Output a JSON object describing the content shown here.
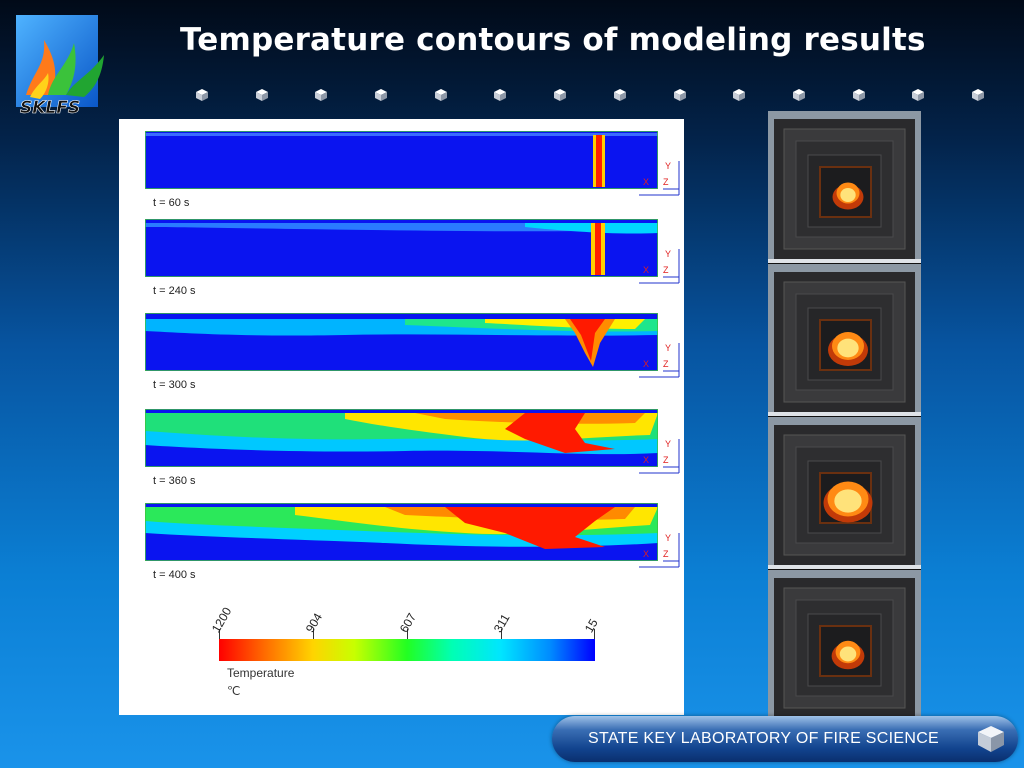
{
  "header": {
    "title": "Temperature contours of modeling results",
    "logo_text": "SKLFS"
  },
  "snapshots": [
    {
      "label": "t = 60 s"
    },
    {
      "label": "t = 240 s"
    },
    {
      "label": "t = 300 s"
    },
    {
      "label": "t = 360 s"
    },
    {
      "label": "t = 400 s"
    }
  ],
  "axes_labels": {
    "x": "X",
    "y": "Y",
    "z": "Z"
  },
  "legend": {
    "title": "Temperature",
    "unit": "℃",
    "ticks": [
      "1200",
      "904",
      "607",
      "311",
      "15"
    ],
    "range": [
      15,
      1200
    ],
    "colors": [
      "#ff0000",
      "#ffd400",
      "#22ff22",
      "#00e5ff",
      "#0000ff"
    ]
  },
  "photos": [
    {
      "name": "fire-photo-1",
      "flame_level": 0.25
    },
    {
      "name": "fire-photo-2",
      "flame_level": 0.5
    },
    {
      "name": "fire-photo-3",
      "flame_level": 0.75
    },
    {
      "name": "fire-photo-4",
      "flame_level": 0.3
    }
  ],
  "footer": {
    "text": "STATE KEY LABORATORY OF FIRE SCIENCE"
  }
}
